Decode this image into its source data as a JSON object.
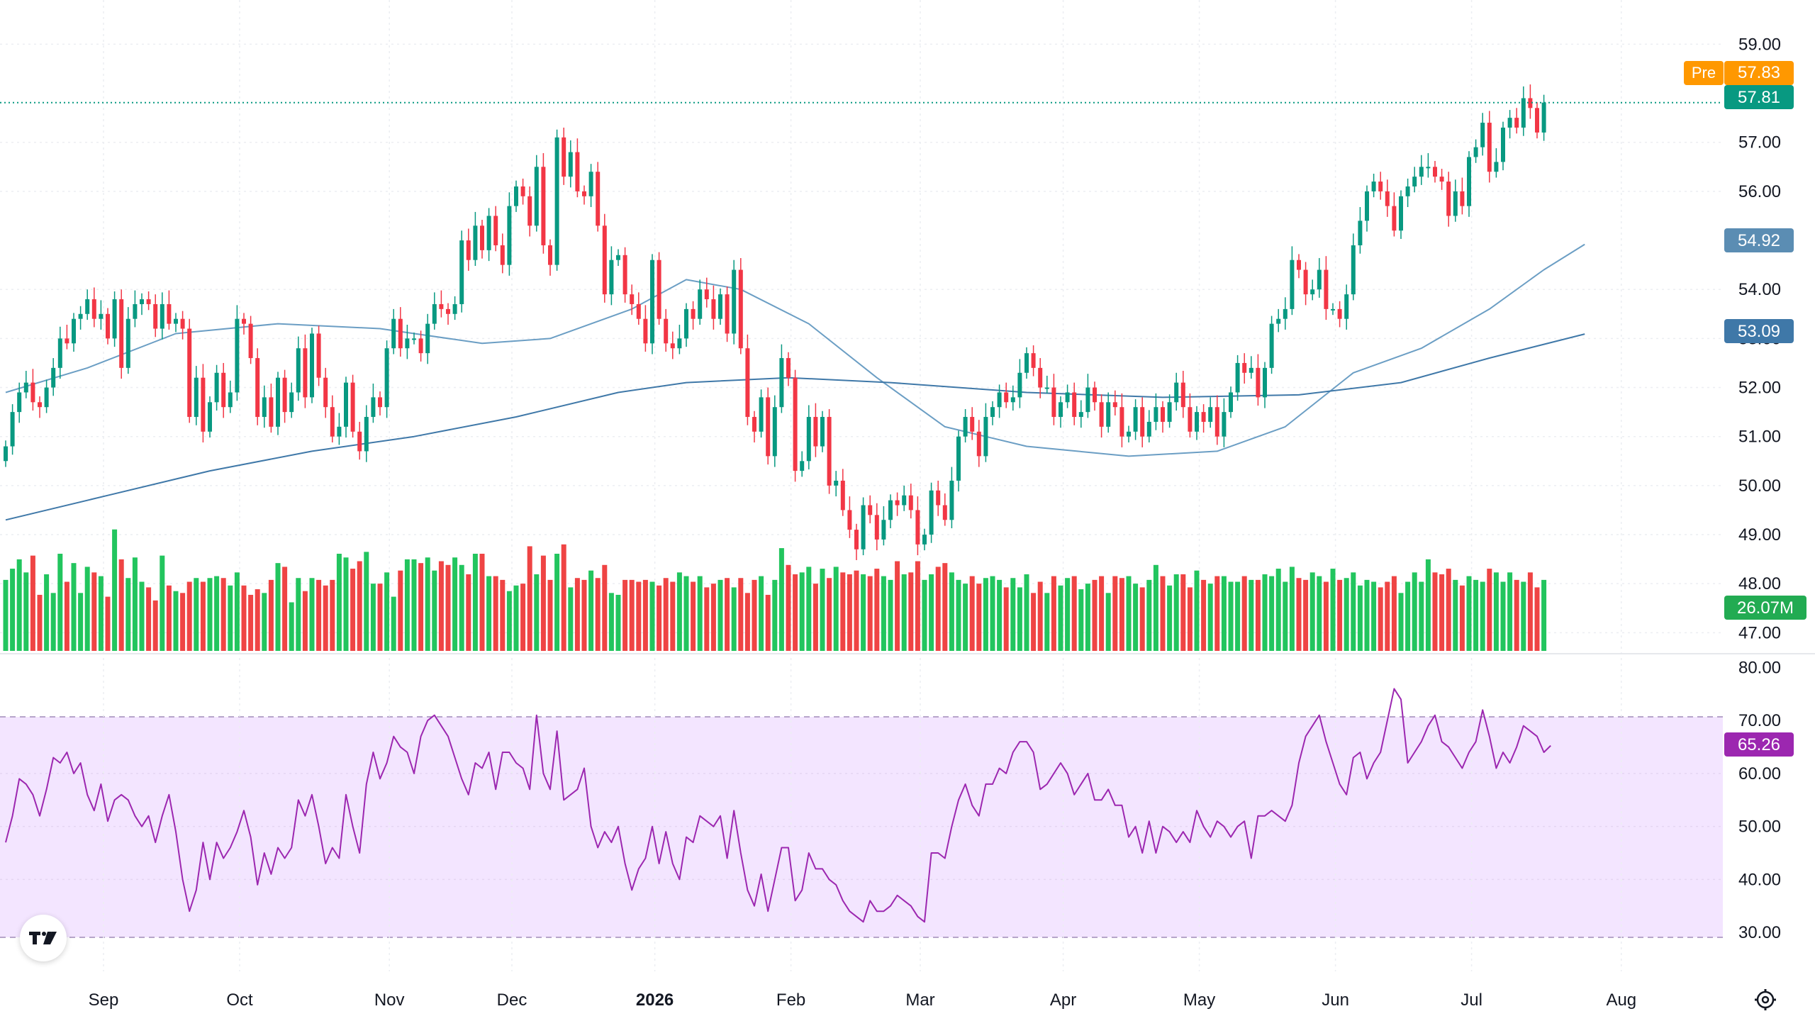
{
  "chart_data": {
    "type": "candlestick",
    "y_axis_price": {
      "ticks": [
        "59.00",
        "57.00",
        "56.00",
        "54.00",
        "53.00",
        "52.00",
        "51.00",
        "50.00",
        "49.00",
        "48.00",
        "47.00"
      ],
      "range": [
        46.6,
        59.7
      ]
    },
    "y_axis_rsi": {
      "ticks": [
        "80.00",
        "70.00",
        "60.00",
        "50.00",
        "40.00",
        "30.00"
      ],
      "range": [
        26,
        81
      ],
      "band": [
        30,
        70
      ]
    },
    "x_axis": {
      "labels": [
        {
          "text": "Sep",
          "bar": 0
        },
        {
          "text": "Oct",
          "bar": 20
        },
        {
          "text": "Nov",
          "bar": 42
        },
        {
          "text": "Dec",
          "bar": 60
        },
        {
          "text": "2026",
          "bar": 81,
          "bold": true
        },
        {
          "text": "Feb",
          "bar": 101
        },
        {
          "text": "Mar",
          "bar": 120
        },
        {
          "text": "Apr",
          "bar": 141
        },
        {
          "text": "May",
          "bar": 161
        },
        {
          "text": "Jun",
          "bar": 181
        },
        {
          "text": "Jul",
          "bar": 201
        },
        {
          "text": "Aug",
          "bar": 223
        }
      ]
    },
    "badges": {
      "pre_label": "Pre",
      "pre_price": "57.83",
      "last_price": "57.81",
      "ma_fast": "54.92",
      "ma_slow": "53.09",
      "volume": "26.07M",
      "rsi": "65.26"
    },
    "last_price_value": 57.81,
    "closes": [
      50.8,
      51.5,
      51.9,
      52.1,
      51.7,
      51.6,
      52.0,
      52.4,
      53.0,
      52.9,
      53.4,
      53.5,
      53.8,
      53.4,
      53.5,
      53.0,
      53.8,
      52.4,
      53.4,
      53.7,
      53.8,
      53.7,
      53.2,
      53.7,
      53.3,
      53.4,
      53.2,
      51.4,
      52.2,
      51.1,
      51.7,
      52.3,
      51.6,
      51.9,
      53.4,
      53.3,
      52.6,
      51.4,
      51.8,
      51.2,
      52.2,
      51.5,
      51.9,
      52.8,
      51.8,
      53.1,
      52.2,
      51.6,
      51.0,
      51.2,
      52.1,
      51.1,
      50.7,
      51.4,
      51.8,
      51.6,
      52.8,
      53.4,
      52.8,
      53.0,
      53.0,
      52.7,
      53.3,
      53.7,
      53.6,
      53.5,
      53.7,
      55.0,
      54.6,
      55.3,
      54.8,
      55.5,
      54.9,
      54.5,
      55.7,
      56.1,
      55.9,
      55.3,
      56.5,
      54.9,
      54.5,
      57.1,
      56.3,
      56.8,
      56.0,
      55.9,
      56.4,
      55.3,
      53.9,
      54.6,
      54.7,
      53.9,
      53.7,
      53.4,
      52.9,
      54.6,
      53.4,
      52.9,
      52.8,
      53.0,
      53.6,
      53.4,
      54.0,
      53.8,
      53.4,
      53.9,
      53.1,
      54.4,
      52.8,
      51.4,
      51.1,
      51.8,
      50.6,
      51.6,
      52.6,
      52.2,
      50.3,
      50.5,
      51.4,
      50.8,
      51.4,
      50.0,
      50.1,
      49.5,
      49.1,
      48.7,
      49.6,
      49.4,
      48.9,
      49.3,
      49.7,
      49.6,
      49.8,
      49.5,
      48.8,
      49.0,
      49.9,
      49.6,
      49.3,
      50.1,
      51.0,
      51.4,
      51.1,
      50.6,
      51.4,
      51.6,
      51.9,
      51.7,
      51.8,
      52.3,
      52.7,
      52.4,
      52.0,
      52.0,
      51.4,
      51.7,
      51.9,
      51.4,
      51.5,
      52.0,
      51.7,
      51.2,
      51.7,
      51.6,
      51.0,
      51.1,
      51.6,
      51.0,
      51.3,
      51.6,
      51.3,
      51.7,
      52.1,
      51.6,
      51.1,
      51.5,
      51.3,
      51.6,
      51.0,
      51.5,
      51.9,
      52.5,
      52.3,
      52.4,
      51.8,
      52.4,
      53.3,
      53.4,
      53.6,
      54.6,
      54.4,
      53.9,
      54.0,
      54.4,
      53.6,
      53.6,
      53.4,
      53.9,
      54.9,
      55.4,
      56.0,
      56.2,
      56.0,
      55.7,
      55.2,
      55.9,
      56.1,
      56.3,
      56.5,
      56.5,
      56.3,
      56.2,
      55.5,
      56.0,
      55.7,
      56.7,
      56.9,
      57.4,
      56.4,
      56.6,
      57.3,
      57.5,
      57.3,
      57.9,
      57.7,
      57.2,
      57.81
    ],
    "ma_fast_points": [
      [
        0,
        51.9
      ],
      [
        12,
        52.4
      ],
      [
        25,
        53.1
      ],
      [
        40,
        53.3
      ],
      [
        55,
        53.2
      ],
      [
        70,
        52.9
      ],
      [
        80,
        53.0
      ],
      [
        92,
        53.6
      ],
      [
        100,
        54.2
      ],
      [
        108,
        54.0
      ],
      [
        118,
        53.3
      ],
      [
        128,
        52.2
      ],
      [
        138,
        51.2
      ],
      [
        150,
        50.8
      ],
      [
        165,
        50.6
      ],
      [
        178,
        50.7
      ],
      [
        188,
        51.2
      ],
      [
        198,
        52.3
      ],
      [
        208,
        52.8
      ],
      [
        218,
        53.6
      ],
      [
        226,
        54.4
      ],
      [
        232,
        54.92
      ]
    ],
    "ma_slow_points": [
      [
        0,
        49.3
      ],
      [
        15,
        49.8
      ],
      [
        30,
        50.3
      ],
      [
        45,
        50.7
      ],
      [
        60,
        51.0
      ],
      [
        75,
        51.4
      ],
      [
        90,
        51.9
      ],
      [
        100,
        52.1
      ],
      [
        115,
        52.2
      ],
      [
        130,
        52.1
      ],
      [
        150,
        51.9
      ],
      [
        170,
        51.8
      ],
      [
        190,
        51.85
      ],
      [
        205,
        52.1
      ],
      [
        218,
        52.6
      ],
      [
        232,
        53.09
      ]
    ],
    "volume": {
      "range": [
        0,
        100
      ],
      "values": [
        38,
        44,
        49,
        42,
        51,
        30,
        41,
        31,
        52,
        37,
        47,
        31,
        45,
        42,
        40,
        29,
        65,
        49,
        39,
        50,
        37,
        34,
        27,
        51,
        35,
        32,
        31,
        37,
        39,
        37,
        39,
        40,
        39,
        35,
        42,
        35,
        30,
        33,
        31,
        38,
        47,
        45,
        26,
        39,
        32,
        39,
        38,
        35,
        38,
        52,
        50,
        44,
        48,
        53,
        36,
        36,
        42,
        29,
        43,
        49,
        49,
        47,
        50,
        43,
        48,
        46,
        50,
        46,
        41,
        52,
        52,
        40,
        40,
        38,
        32,
        35,
        36,
        56,
        41,
        51,
        38,
        52,
        57,
        34,
        39,
        38,
        43,
        39,
        46,
        31,
        30,
        38,
        38,
        37,
        38,
        37,
        35,
        39,
        37,
        42,
        40,
        37,
        40,
        34,
        36,
        38,
        39,
        34,
        39,
        31,
        38,
        40,
        30,
        38,
        55,
        46,
        41,
        42,
        45,
        36,
        44,
        39,
        45,
        42,
        41,
        43,
        41,
        40,
        44,
        40,
        38,
        48,
        41,
        42,
        48,
        38,
        41,
        45,
        47,
        42,
        38,
        36,
        40,
        36,
        39,
        40,
        38,
        34,
        39,
        34,
        41,
        31,
        37,
        31,
        40,
        35,
        39,
        40,
        33,
        36,
        38,
        40,
        31,
        40,
        39,
        40,
        36,
        34,
        38,
        46,
        40,
        35,
        41,
        41,
        34,
        43,
        38,
        36,
        40,
        40,
        37,
        37,
        40,
        38,
        38,
        41,
        40,
        44,
        37,
        45,
        39,
        38,
        42,
        40,
        37,
        44,
        38,
        39,
        42,
        35,
        38,
        37,
        34,
        37,
        40,
        31,
        37,
        42,
        37,
        49,
        42,
        41,
        44,
        38,
        35,
        40,
        38,
        37,
        44,
        42,
        37,
        42,
        38,
        37,
        42,
        34,
        38,
        33,
        38,
        37,
        43,
        30,
        31,
        37
      ]
    },
    "rsi_values": [
      47,
      52,
      59,
      58,
      56,
      52,
      57,
      63,
      62,
      64,
      60,
      62,
      56,
      53,
      58,
      51,
      55,
      56,
      55,
      52,
      50,
      52,
      47,
      52,
      56,
      49,
      40,
      34,
      38,
      47,
      40,
      47,
      44,
      46,
      49,
      53,
      48,
      39,
      45,
      41,
      46,
      44,
      46,
      55,
      52,
      56,
      50,
      43,
      46,
      44,
      56,
      50,
      45,
      58,
      64,
      59,
      62,
      67,
      65,
      64,
      60,
      67,
      70,
      71,
      69,
      67,
      63,
      59,
      56,
      62,
      61,
      64,
      57,
      64,
      64,
      62,
      61,
      57,
      71,
      60,
      57,
      68,
      55,
      56,
      57,
      61,
      50,
      46,
      49,
      47,
      50,
      43,
      38,
      42,
      44,
      50,
      43,
      49,
      43,
      40,
      48,
      47,
      52,
      51,
      50,
      52,
      44,
      53,
      45,
      38,
      35,
      41,
      34,
      40,
      46,
      46,
      36,
      38,
      45,
      42,
      42,
      40,
      39,
      36,
      34,
      33,
      32,
      36,
      34,
      34,
      35,
      37,
      36,
      35,
      33,
      32,
      45,
      45,
      44,
      50,
      55,
      58,
      54,
      52,
      58,
      58,
      61,
      60,
      64,
      66,
      66,
      64,
      57,
      58,
      60,
      62,
      60,
      56,
      58,
      60,
      55,
      55,
      57,
      54,
      54,
      48,
      50,
      45,
      51,
      45,
      50,
      49,
      47,
      49,
      47,
      53,
      50,
      48,
      51,
      50,
      48,
      50,
      51,
      44,
      52,
      52,
      53,
      52,
      51,
      54,
      62,
      67,
      69,
      71,
      66,
      62,
      58,
      56,
      63,
      64,
      59,
      62,
      64,
      70,
      76,
      74,
      62,
      64,
      66,
      69,
      71,
      66,
      65,
      63,
      61,
      64,
      66,
      72,
      67,
      61,
      64,
      62,
      65,
      69,
      68,
      67,
      64,
      65.26
    ]
  }
}
